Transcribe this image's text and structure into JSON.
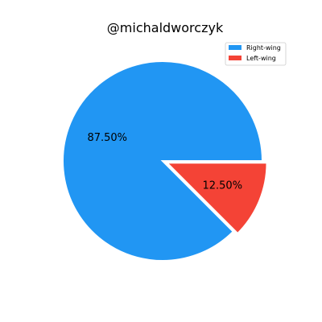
{
  "chart_data": {
    "type": "pie",
    "title": "@michaldworczyk",
    "categories": [
      "Right-wing",
      "Left-wing"
    ],
    "values": [
      87.5,
      12.5
    ],
    "value_labels": [
      "87.50%",
      "12.50%"
    ],
    "colors": [
      "#2196f3",
      "#f44336"
    ],
    "exploded": [
      false,
      true
    ],
    "legend_position": "top-right"
  }
}
